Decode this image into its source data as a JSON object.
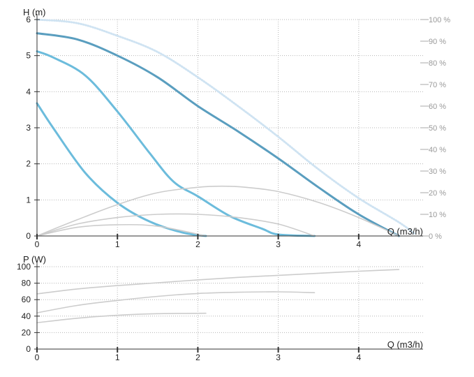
{
  "chart_data": [
    {
      "type": "line",
      "ylabel": "H (m)",
      "xlabel": "Q (m3/h)",
      "xlim": [
        0,
        4.8
      ],
      "ylim": [
        0,
        6
      ],
      "xticks": [
        "0",
        "1",
        "2",
        "3",
        "4"
      ],
      "yticks": [
        "0",
        "1",
        "2",
        "3",
        "4",
        "5",
        "6"
      ],
      "right_ylim": [
        0,
        100
      ],
      "right_yticks": [
        "0 %",
        "10 %",
        "20 %",
        "30 %",
        "40 %",
        "50 %",
        "60 %",
        "70 %",
        "80 %",
        "90 %",
        "100 %"
      ],
      "grid": "dotted",
      "series": [
        {
          "role": "max-limit",
          "color": "#cfe3f2",
          "style": "dotted",
          "x": [
            0,
            0.5,
            1.0,
            1.5,
            2.0,
            2.5,
            3.0,
            3.5,
            4.0,
            4.5,
            4.7
          ],
          "y": [
            6.0,
            5.9,
            5.55,
            5.1,
            4.4,
            3.6,
            2.75,
            1.85,
            1.05,
            0.38,
            0.05
          ]
        },
        {
          "role": "curve-max",
          "color": "#5a9ebf",
          "x": [
            0,
            0.5,
            1.0,
            1.5,
            2.0,
            2.5,
            3.0,
            3.5,
            4.0,
            4.5
          ],
          "y": [
            5.62,
            5.45,
            5.0,
            4.4,
            3.6,
            2.9,
            2.15,
            1.35,
            0.6,
            0.0
          ]
        },
        {
          "role": "curve-mid",
          "color": "#6cbcdc",
          "x": [
            0,
            0.2,
            0.6,
            1.0,
            1.4,
            1.7,
            2.0,
            2.4,
            2.8,
            3.0,
            3.45
          ],
          "y": [
            5.12,
            4.95,
            4.45,
            3.45,
            2.3,
            1.5,
            1.1,
            0.55,
            0.2,
            0.04,
            0.0
          ]
        },
        {
          "role": "curve-min",
          "color": "#6cbcdc",
          "x": [
            0,
            0.2,
            0.6,
            1.0,
            1.4,
            1.8,
            2.1
          ],
          "y": [
            3.68,
            3.0,
            1.75,
            0.92,
            0.4,
            0.1,
            0.0
          ]
        },
        {
          "role": "efficiency-max",
          "color": "#cccccc",
          "axis": "right",
          "x": [
            0,
            0.5,
            1.0,
            1.5,
            2.0,
            2.3,
            2.6,
            3.0,
            3.5,
            4.0,
            4.5
          ],
          "y": [
            0,
            7.5,
            14.5,
            20,
            22.5,
            23,
            22.5,
            20.5,
            15.5,
            8.5,
            0
          ]
        },
        {
          "role": "efficiency-mid",
          "color": "#cccccc",
          "axis": "right",
          "x": [
            0,
            0.5,
            1.0,
            1.5,
            2.0,
            2.5,
            3.0,
            3.45
          ],
          "y": [
            0,
            5.5,
            8.5,
            10,
            10,
            8.5,
            5.5,
            0
          ]
        },
        {
          "role": "efficiency-min",
          "color": "#cccccc",
          "axis": "right",
          "x": [
            0,
            0.5,
            1.0,
            1.5,
            2.1
          ],
          "y": [
            0,
            4,
            5.2,
            4.5,
            0
          ]
        }
      ]
    },
    {
      "type": "line",
      "ylabel": "P (W)",
      "xlabel": "Q (m3/h)",
      "xlim": [
        0,
        4.8
      ],
      "ylim": [
        0,
        100
      ],
      "xticks": [
        "0",
        "1",
        "2",
        "3",
        "4"
      ],
      "yticks": [
        "0",
        "20",
        "40",
        "60",
        "80",
        "100"
      ],
      "grid": "dotted",
      "series": [
        {
          "role": "power-max",
          "color": "#cccccc",
          "x": [
            0,
            0.5,
            1.0,
            1.5,
            2.0,
            2.5,
            3.0,
            3.5,
            4.0,
            4.5
          ],
          "y": [
            67,
            73,
            77,
            80.5,
            84,
            87,
            89.5,
            92,
            94.5,
            96.5
          ]
        },
        {
          "role": "power-mid",
          "color": "#cccccc",
          "x": [
            0,
            0.5,
            1.0,
            1.5,
            2.0,
            2.5,
            3.0,
            3.45
          ],
          "y": [
            44,
            53,
            59,
            64,
            67.5,
            69,
            69.5,
            68.5
          ]
        },
        {
          "role": "power-min",
          "color": "#cccccc",
          "x": [
            0,
            0.5,
            1.0,
            1.5,
            2.1
          ],
          "y": [
            32,
            37.5,
            41,
            43,
            43.5
          ]
        }
      ]
    }
  ]
}
